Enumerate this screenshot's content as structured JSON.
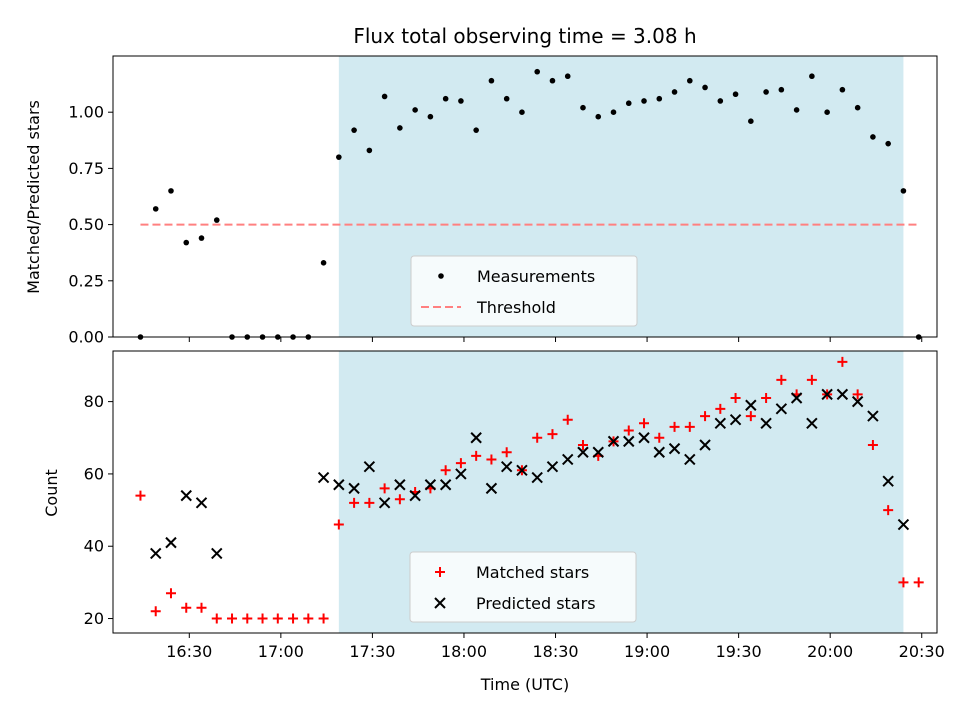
{
  "chart_data": [
    {
      "type": "scatter",
      "title": "Flux total observing time = 3.08 h",
      "xlabel": "",
      "ylabel": "Matched/Predicted stars",
      "ylim": [
        0,
        1.25
      ],
      "yticks": [
        0.0,
        0.25,
        0.5,
        0.75,
        1.0
      ],
      "ytick_labels": [
        "0.00",
        "0.25",
        "0.50",
        "0.75",
        "1.00"
      ],
      "xlim": [
        "16:05",
        "20:35"
      ],
      "shaded_span": [
        "17:19",
        "20:24"
      ],
      "shade_color": "#add8e6",
      "series": [
        {
          "name": "Measurements",
          "color": "#000000",
          "marker": "dot",
          "points": [
            [
              "16:14",
              0.0
            ],
            [
              "16:19",
              0.57
            ],
            [
              "16:24",
              0.65
            ],
            [
              "16:29",
              0.42
            ],
            [
              "16:34",
              0.44
            ],
            [
              "16:39",
              0.52
            ],
            [
              "16:44",
              0.0
            ],
            [
              "16:49",
              0.0
            ],
            [
              "16:54",
              0.0
            ],
            [
              "16:59",
              0.0
            ],
            [
              "17:04",
              0.0
            ],
            [
              "17:09",
              0.0
            ],
            [
              "17:14",
              0.33
            ],
            [
              "17:19",
              0.8
            ],
            [
              "17:24",
              0.92
            ],
            [
              "17:29",
              0.83
            ],
            [
              "17:34",
              1.07
            ],
            [
              "17:39",
              0.93
            ],
            [
              "17:44",
              1.01
            ],
            [
              "17:49",
              0.98
            ],
            [
              "17:54",
              1.06
            ],
            [
              "17:59",
              1.05
            ],
            [
              "18:04",
              0.92
            ],
            [
              "18:09",
              1.14
            ],
            [
              "18:14",
              1.06
            ],
            [
              "18:19",
              1.0
            ],
            [
              "18:24",
              1.18
            ],
            [
              "18:29",
              1.14
            ],
            [
              "18:34",
              1.16
            ],
            [
              "18:39",
              1.02
            ],
            [
              "18:44",
              0.98
            ],
            [
              "18:49",
              1.0
            ],
            [
              "18:54",
              1.04
            ],
            [
              "18:59",
              1.05
            ],
            [
              "19:04",
              1.06
            ],
            [
              "19:09",
              1.09
            ],
            [
              "19:14",
              1.14
            ],
            [
              "19:19",
              1.11
            ],
            [
              "19:24",
              1.05
            ],
            [
              "19:29",
              1.08
            ],
            [
              "19:34",
              0.96
            ],
            [
              "19:39",
              1.09
            ],
            [
              "19:44",
              1.1
            ],
            [
              "19:49",
              1.01
            ],
            [
              "19:54",
              1.16
            ],
            [
              "19:59",
              1.0
            ],
            [
              "20:04",
              1.1
            ],
            [
              "20:09",
              1.02
            ],
            [
              "20:14",
              0.89
            ],
            [
              "20:19",
              0.86
            ],
            [
              "20:24",
              0.65
            ],
            [
              "20:29",
              0.0
            ]
          ]
        },
        {
          "name": "Threshold",
          "color": "#ff8080",
          "style": "dashed",
          "points": [
            [
              "16:14",
              0.5
            ],
            [
              "20:29",
              0.5
            ]
          ]
        }
      ],
      "legend": {
        "placement": "lower-center",
        "entries": [
          "Measurements",
          "Threshold"
        ]
      }
    },
    {
      "type": "scatter",
      "title": "",
      "xlabel": "Time (UTC)",
      "ylabel": "Count",
      "ylim": [
        16,
        94
      ],
      "yticks": [
        20,
        40,
        60,
        80
      ],
      "ytick_labels": [
        "20",
        "40",
        "60",
        "80"
      ],
      "xlim": [
        "16:05",
        "20:35"
      ],
      "xticks": [
        "16:30",
        "17:00",
        "17:30",
        "18:00",
        "18:30",
        "19:00",
        "19:30",
        "20:00",
        "20:30"
      ],
      "xtick_labels": [
        "16:30",
        "17:00",
        "17:30",
        "18:00",
        "18:30",
        "19:00",
        "19:30",
        "20:00",
        "20:30"
      ],
      "shaded_span": [
        "17:19",
        "20:24"
      ],
      "shade_color": "#add8e6",
      "series": [
        {
          "name": "Matched stars",
          "color": "#ff0000",
          "marker": "plus",
          "points": [
            [
              "16:14",
              54
            ],
            [
              "16:19",
              22
            ],
            [
              "16:24",
              27
            ],
            [
              "16:29",
              23
            ],
            [
              "16:34",
              23
            ],
            [
              "16:39",
              20
            ],
            [
              "16:44",
              20
            ],
            [
              "16:49",
              20
            ],
            [
              "16:54",
              20
            ],
            [
              "16:59",
              20
            ],
            [
              "17:04",
              20
            ],
            [
              "17:09",
              20
            ],
            [
              "17:14",
              20
            ],
            [
              "17:19",
              46
            ],
            [
              "17:24",
              52
            ],
            [
              "17:29",
              52
            ],
            [
              "17:34",
              56
            ],
            [
              "17:39",
              53
            ],
            [
              "17:44",
              55
            ],
            [
              "17:49",
              56
            ],
            [
              "17:54",
              61
            ],
            [
              "17:59",
              63
            ],
            [
              "18:04",
              65
            ],
            [
              "18:09",
              64
            ],
            [
              "18:14",
              66
            ],
            [
              "18:19",
              61
            ],
            [
              "18:24",
              70
            ],
            [
              "18:29",
              71
            ],
            [
              "18:34",
              75
            ],
            [
              "18:39",
              68
            ],
            [
              "18:44",
              65
            ],
            [
              "18:49",
              69
            ],
            [
              "18:54",
              72
            ],
            [
              "18:59",
              74
            ],
            [
              "19:04",
              70
            ],
            [
              "19:09",
              73
            ],
            [
              "19:14",
              73
            ],
            [
              "19:19",
              76
            ],
            [
              "19:24",
              78
            ],
            [
              "19:29",
              81
            ],
            [
              "19:34",
              76
            ],
            [
              "19:39",
              81
            ],
            [
              "19:44",
              86
            ],
            [
              "19:49",
              82
            ],
            [
              "19:54",
              86
            ],
            [
              "19:59",
              82
            ],
            [
              "20:04",
              91
            ],
            [
              "20:09",
              82
            ],
            [
              "20:14",
              68
            ],
            [
              "20:19",
              50
            ],
            [
              "20:24",
              30
            ],
            [
              "20:29",
              30
            ]
          ]
        },
        {
          "name": "Predicted stars",
          "color": "#000000",
          "marker": "x",
          "points": [
            [
              "16:19",
              38
            ],
            [
              "16:24",
              41
            ],
            [
              "16:29",
              54
            ],
            [
              "16:34",
              52
            ],
            [
              "16:39",
              38
            ],
            [
              "17:14",
              59
            ],
            [
              "17:19",
              57
            ],
            [
              "17:24",
              56
            ],
            [
              "17:29",
              62
            ],
            [
              "17:34",
              52
            ],
            [
              "17:39",
              57
            ],
            [
              "17:44",
              54
            ],
            [
              "17:49",
              57
            ],
            [
              "17:54",
              57
            ],
            [
              "17:59",
              60
            ],
            [
              "18:04",
              70
            ],
            [
              "18:09",
              56
            ],
            [
              "18:14",
              62
            ],
            [
              "18:19",
              61
            ],
            [
              "18:24",
              59
            ],
            [
              "18:29",
              62
            ],
            [
              "18:34",
              64
            ],
            [
              "18:39",
              66
            ],
            [
              "18:44",
              66
            ],
            [
              "18:49",
              69
            ],
            [
              "18:54",
              69
            ],
            [
              "18:59",
              70
            ],
            [
              "19:04",
              66
            ],
            [
              "19:09",
              67
            ],
            [
              "19:14",
              64
            ],
            [
              "19:19",
              68
            ],
            [
              "19:24",
              74
            ],
            [
              "19:29",
              75
            ],
            [
              "19:34",
              79
            ],
            [
              "19:39",
              74
            ],
            [
              "19:44",
              78
            ],
            [
              "19:49",
              81
            ],
            [
              "19:54",
              74
            ],
            [
              "19:59",
              82
            ],
            [
              "20:04",
              82
            ],
            [
              "20:09",
              80
            ],
            [
              "20:14",
              76
            ],
            [
              "20:19",
              58
            ],
            [
              "20:24",
              46
            ]
          ]
        }
      ],
      "legend": {
        "placement": "lower-center",
        "entries": [
          "Matched stars",
          "Predicted stars"
        ]
      }
    }
  ]
}
